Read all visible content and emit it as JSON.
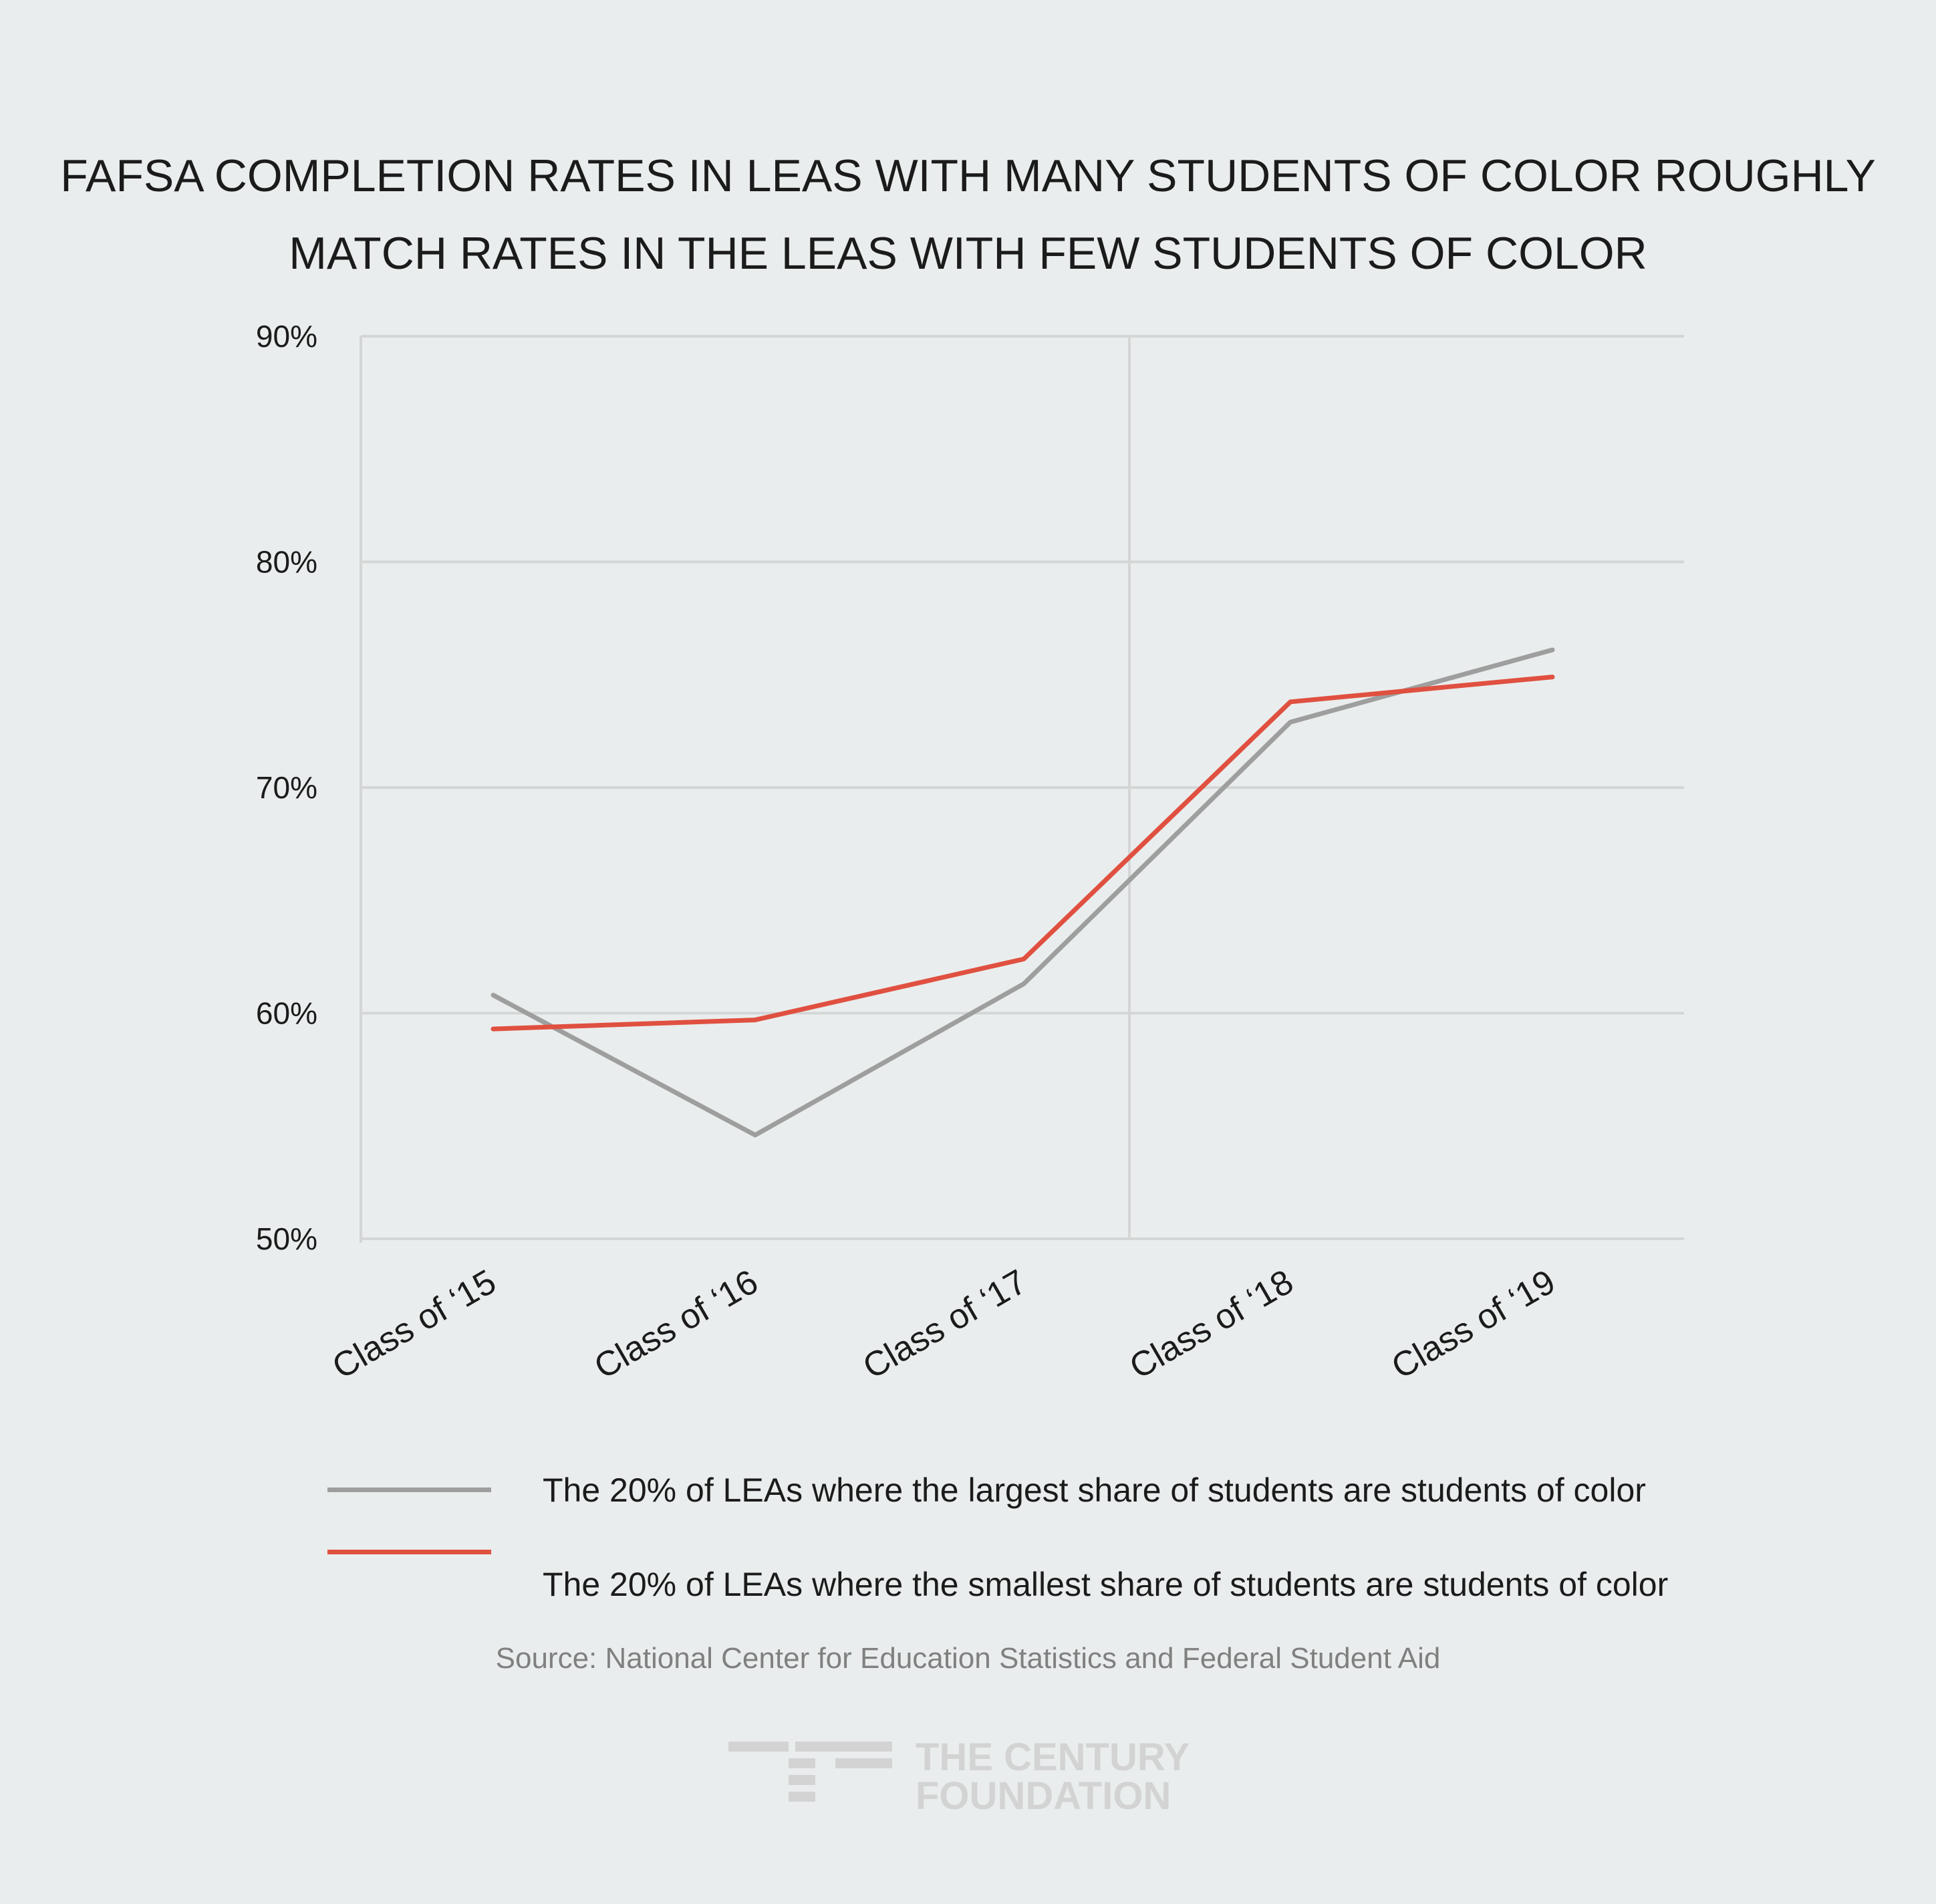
{
  "chart_data": {
    "type": "line",
    "title_lines": [
      "FAFSA COMPLETION RATES IN LEAS WITH MANY STUDENTS OF COLOR ROUGHLY",
      "MATCH RATES IN THE LEAS WITH FEW STUDENTS OF COLOR"
    ],
    "categories": [
      "Class of ‘15",
      "Class of ‘16",
      "Class of ‘17",
      "Class of ‘18",
      "Class of ‘19"
    ],
    "ylim": [
      50,
      90
    ],
    "yticks": [
      50,
      60,
      70,
      80,
      90
    ],
    "ytick_labels": [
      "50%",
      "60%",
      "70%",
      "80%",
      "90%"
    ],
    "grid": true,
    "series": [
      {
        "name": "The 20% of LEAs where the largest share of students are students of color",
        "color": "#9e9e9e",
        "values": [
          60.8,
          54.6,
          61.3,
          72.9,
          76.1
        ]
      },
      {
        "name": "The 20% of LEAs where the smallest share of students are students of color",
        "color": "#e05040",
        "values": [
          59.3,
          59.7,
          62.4,
          73.8,
          74.9
        ]
      }
    ],
    "legend_position": "bottom"
  },
  "source": "Source: National Center for Education Statistics and Federal Student Aid",
  "logo": {
    "line1": "THE CENTURY",
    "line2": "FOUNDATION"
  },
  "colors": {
    "background": "#eaeded",
    "grid": "#d4d6d6",
    "logo": "#d3d3d3"
  }
}
